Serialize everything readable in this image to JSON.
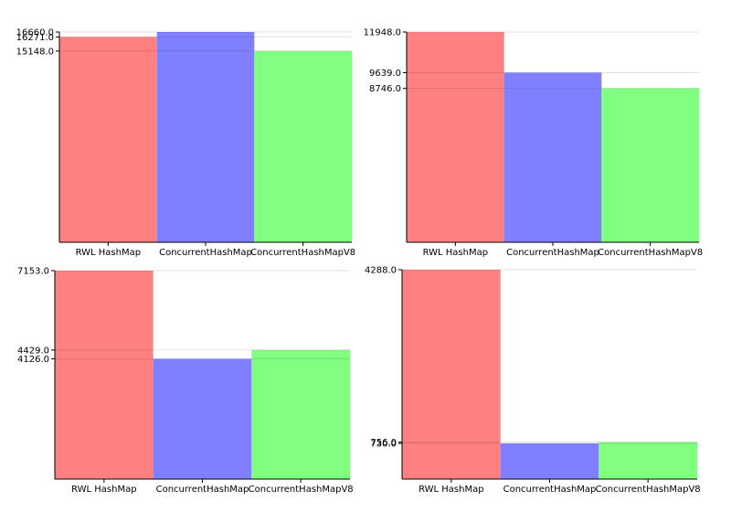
{
  "chart_data": [
    {
      "type": "bar",
      "categories": [
        "RWL HashMap",
        "ConcurrentHashMap",
        "ConcurrentHashMapV8"
      ],
      "values": [
        16271,
        16660,
        15148
      ],
      "ytick_labels": [
        "16660.0",
        "16271.0",
        "15148.0"
      ],
      "ylim": [
        0,
        16660
      ],
      "grid": true,
      "colors": [
        "#ff8080",
        "#8080ff",
        "#80ff80"
      ]
    },
    {
      "type": "bar",
      "categories": [
        "RWL HashMap",
        "ConcurrentHashMap",
        "ConcurrentHashMapV8"
      ],
      "values": [
        11948,
        9639,
        8746
      ],
      "ytick_labels": [
        "11948.0",
        "9639.0",
        "8746.0"
      ],
      "ylim": [
        0,
        11948
      ],
      "grid": true,
      "colors": [
        "#ff8080",
        "#8080ff",
        "#80ff80"
      ]
    },
    {
      "type": "bar",
      "categories": [
        "RWL HashMap",
        "ConcurrentHashMap",
        "ConcurrentHashMapV8"
      ],
      "values": [
        7153,
        4126,
        4429
      ],
      "ytick_labels": [
        "7153.0",
        "4429.0",
        "4126.0"
      ],
      "ylim": [
        0,
        7153
      ],
      "grid": true,
      "colors": [
        "#ff8080",
        "#8080ff",
        "#80ff80"
      ]
    },
    {
      "type": "bar",
      "categories": [
        "RWL HashMap",
        "ConcurrentHashMap",
        "ConcurrentHashMapV8"
      ],
      "values": [
        4288,
        730,
        756
      ],
      "ytick_labels": [
        "4288.0",
        "756.0",
        "730.0"
      ],
      "ylim": [
        0,
        4288
      ],
      "grid": true,
      "colors": [
        "#ff8080",
        "#8080ff",
        "#80ff80"
      ]
    }
  ]
}
